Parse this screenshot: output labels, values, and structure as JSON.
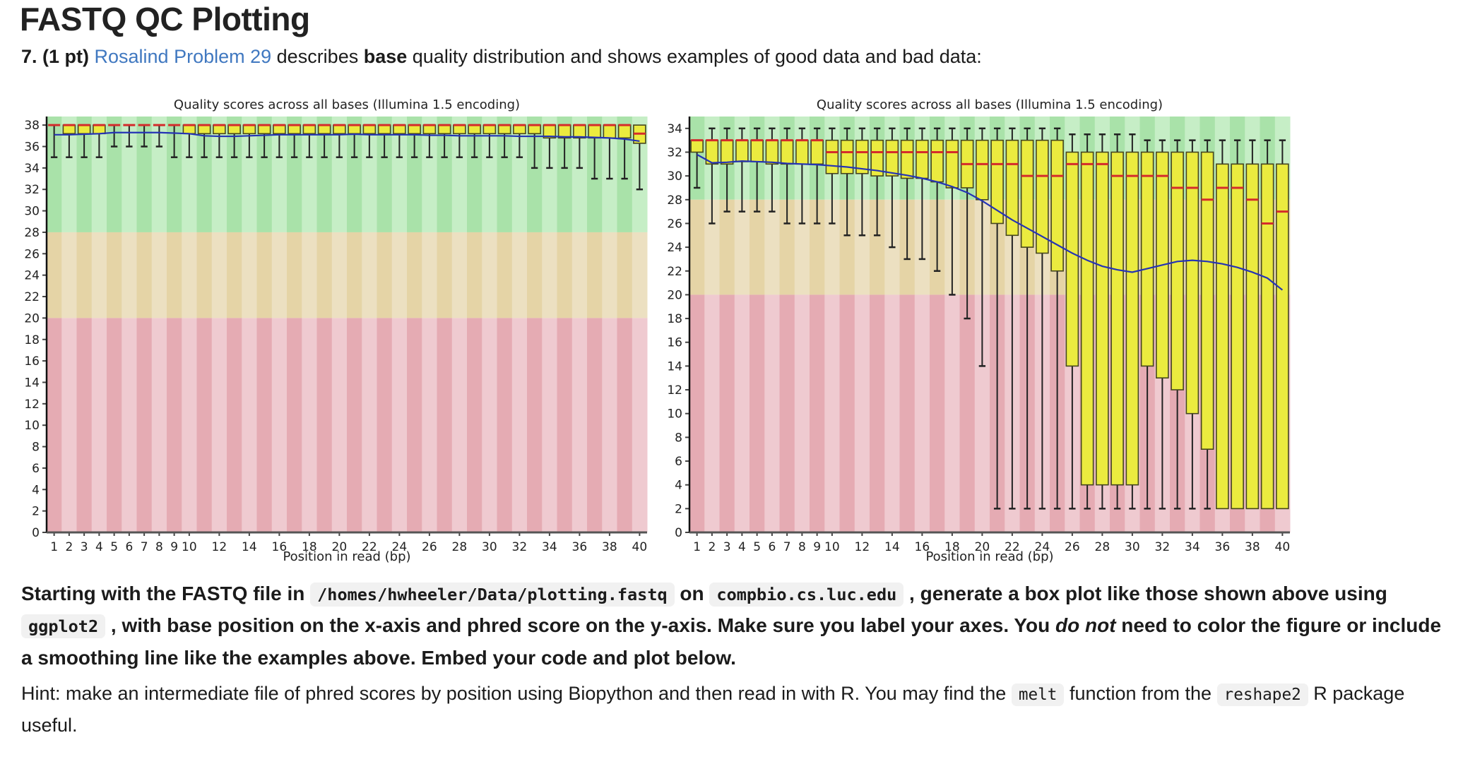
{
  "page": {
    "title": "FASTQ QC Plotting",
    "question_runs": [
      {
        "t": "7. (1 pt) ",
        "s": "b"
      },
      {
        "t": "Rosalind Problem 29",
        "s": "link"
      },
      {
        "t": " describes ",
        "s": "t"
      },
      {
        "t": "base",
        "s": "b"
      },
      {
        "t": " quality distribution and shows examples of good data and bad data:",
        "s": "t"
      }
    ],
    "instruction_runs": [
      {
        "t": "Starting with the FASTQ file in ",
        "s": "t"
      },
      {
        "t": "/homes/hwheeler/Data/plotting.fastq",
        "s": "code"
      },
      {
        "t": " on ",
        "s": "t"
      },
      {
        "t": "compbio.cs.luc.edu",
        "s": "code"
      },
      {
        "t": " , generate a box plot like those shown above using ",
        "s": "t"
      },
      {
        "t": "ggplot2",
        "s": "code"
      },
      {
        "t": " , with base position on the x-axis and phred score on the y-axis. Make sure you label your axes. You ",
        "s": "t"
      },
      {
        "t": "do not",
        "s": "bi"
      },
      {
        "t": " need to color the figure or include a smoothing line like the examples above. Embed your code and plot below.",
        "s": "t"
      }
    ],
    "hint_runs": [
      {
        "t": "Hint: make an intermediate file of phred scores by position using Biopython and then read in with R. You may find the ",
        "s": "t"
      },
      {
        "t": "melt",
        "s": "code"
      },
      {
        "t": " function from the ",
        "s": "t"
      },
      {
        "t": "reshape2",
        "s": "code"
      },
      {
        "t": " R package useful.",
        "s": "t"
      }
    ]
  },
  "chart_data": [
    {
      "type": "boxplot",
      "name": "good-data-example",
      "title": "Quality scores across all bases (Illumina 1.5 encoding)",
      "xlabel": "Position in read (bp)",
      "ylim": [
        0,
        38.8
      ],
      "yticks": [
        0,
        2,
        4,
        6,
        8,
        10,
        12,
        14,
        16,
        18,
        20,
        22,
        24,
        26,
        28,
        30,
        32,
        34,
        36,
        38
      ],
      "xticks": [
        1,
        2,
        3,
        4,
        5,
        6,
        7,
        8,
        9,
        10,
        12,
        14,
        16,
        18,
        20,
        22,
        24,
        26,
        28,
        30,
        32,
        34,
        36,
        38,
        40
      ],
      "zones": [
        {
          "from": 28,
          "to": 38.8,
          "colors": [
            "#a9e2a9",
            "#c6eec6"
          ]
        },
        {
          "from": 20,
          "to": 28,
          "colors": [
            "#e5d4a6",
            "#ece0c1"
          ]
        },
        {
          "from": 0,
          "to": 20,
          "colors": [
            "#e5abb3",
            "#efcad0"
          ]
        }
      ],
      "box_format": [
        "q1",
        "median",
        "q3",
        "whisker_low",
        "whisker_high"
      ],
      "boxes": [
        [
          38,
          38,
          38,
          35,
          38
        ],
        [
          37.2,
          38,
          38,
          35,
          38
        ],
        [
          37.2,
          38,
          38,
          35,
          38
        ],
        [
          37.2,
          38,
          38,
          35,
          38
        ],
        [
          38,
          38,
          38,
          36,
          38
        ],
        [
          38,
          38,
          38,
          36,
          38
        ],
        [
          38,
          38,
          38,
          36,
          38
        ],
        [
          38,
          38,
          38,
          36,
          38
        ],
        [
          38,
          38,
          38,
          35,
          38
        ],
        [
          37.2,
          38,
          38,
          35,
          38
        ],
        [
          37.2,
          38,
          38,
          35,
          38
        ],
        [
          37.2,
          38,
          38,
          35,
          38
        ],
        [
          37.2,
          38,
          38,
          35,
          38
        ],
        [
          37.2,
          38,
          38,
          35,
          38
        ],
        [
          37.2,
          38,
          38,
          35,
          38
        ],
        [
          37.2,
          38,
          38,
          35,
          38
        ],
        [
          37.2,
          38,
          38,
          35,
          38
        ],
        [
          37.2,
          38,
          38,
          35,
          38
        ],
        [
          37.2,
          38,
          38,
          35,
          38
        ],
        [
          37.2,
          38,
          38,
          35,
          38
        ],
        [
          37.2,
          38,
          38,
          35,
          38
        ],
        [
          37.2,
          38,
          38,
          35,
          38
        ],
        [
          37.2,
          38,
          38,
          35,
          38
        ],
        [
          37.2,
          38,
          38,
          35,
          38
        ],
        [
          37.2,
          38,
          38,
          35,
          38
        ],
        [
          37.2,
          38,
          38,
          35,
          38
        ],
        [
          37.2,
          38,
          38,
          35,
          38
        ],
        [
          37.2,
          38,
          38,
          35,
          38
        ],
        [
          37.2,
          38,
          38,
          35,
          38
        ],
        [
          37.2,
          38,
          38,
          35,
          38
        ],
        [
          37.2,
          38,
          38,
          35,
          38
        ],
        [
          37.2,
          38,
          38,
          35,
          38
        ],
        [
          37.2,
          38,
          38,
          34,
          38
        ],
        [
          36.8,
          38,
          38,
          34,
          38
        ],
        [
          36.8,
          38,
          38,
          34,
          38
        ],
        [
          36.8,
          38,
          38,
          34,
          38
        ],
        [
          36.8,
          38,
          38,
          33,
          38
        ],
        [
          36.8,
          38,
          38,
          33,
          38
        ],
        [
          36.8,
          38,
          38,
          33,
          38
        ],
        [
          36.3,
          37.2,
          38,
          32,
          38
        ]
      ],
      "mean": [
        37.1,
        37.1,
        37.15,
        37.2,
        37.3,
        37.3,
        37.3,
        37.3,
        37.25,
        37.2,
        37.0,
        36.95,
        36.95,
        37.0,
        37.05,
        37.1,
        37.1,
        37.1,
        37.1,
        37.1,
        37.15,
        37.1,
        37.1,
        37.1,
        37.1,
        37.05,
        37.05,
        37.0,
        37.0,
        37.0,
        37.0,
        36.95,
        36.95,
        36.95,
        36.9,
        36.9,
        36.85,
        36.8,
        36.7,
        36.5
      ],
      "colors": {
        "box": "#ebeb3f",
        "box_border": "#46461f",
        "median": "#d42c2c",
        "mean": "#2533b5",
        "whisker": "#222222",
        "axis": "#444444",
        "text": "#222222"
      }
    },
    {
      "type": "boxplot",
      "name": "bad-data-example",
      "title": "Quality scores across all bases (Illumina 1.5 encoding)",
      "xlabel": "Position in read (bp)",
      "ylim": [
        0,
        35
      ],
      "yticks": [
        0,
        2,
        4,
        6,
        8,
        10,
        12,
        14,
        16,
        18,
        20,
        22,
        24,
        26,
        28,
        30,
        32,
        34
      ],
      "xticks": [
        1,
        2,
        3,
        4,
        5,
        6,
        7,
        8,
        9,
        10,
        12,
        14,
        16,
        18,
        20,
        22,
        24,
        26,
        28,
        30,
        32,
        34,
        36,
        38,
        40
      ],
      "zones": [
        {
          "from": 28,
          "to": 35,
          "colors": [
            "#a9e2a9",
            "#c6eec6"
          ]
        },
        {
          "from": 20,
          "to": 28,
          "colors": [
            "#e5d4a6",
            "#ece0c1"
          ]
        },
        {
          "from": 0,
          "to": 20,
          "colors": [
            "#e5abb3",
            "#efcad0"
          ]
        }
      ],
      "box_format": [
        "q1",
        "median",
        "q3",
        "whisker_low",
        "whisker_high"
      ],
      "boxes": [
        [
          32,
          33,
          33,
          29,
          33
        ],
        [
          31,
          33,
          33,
          26,
          34
        ],
        [
          31,
          33,
          33,
          27,
          34
        ],
        [
          31.2,
          33,
          33,
          27,
          34
        ],
        [
          31.2,
          33,
          33,
          27,
          34
        ],
        [
          31,
          33,
          33,
          27,
          34
        ],
        [
          31,
          33,
          33,
          26,
          34
        ],
        [
          31,
          33,
          33,
          26,
          34
        ],
        [
          31,
          33,
          33,
          26,
          34
        ],
        [
          30.2,
          32,
          33,
          26,
          34
        ],
        [
          30.2,
          32,
          33,
          25,
          34
        ],
        [
          30.2,
          32,
          33,
          25,
          34
        ],
        [
          30,
          32,
          33,
          25,
          34
        ],
        [
          30,
          32,
          33,
          24,
          34
        ],
        [
          29.8,
          32,
          33,
          23,
          34
        ],
        [
          29.8,
          32,
          33,
          23,
          34
        ],
        [
          29.5,
          32,
          33,
          22,
          34
        ],
        [
          29,
          32,
          33,
          20,
          34
        ],
        [
          29,
          31,
          33,
          18,
          34
        ],
        [
          28,
          31,
          33,
          14,
          34
        ],
        [
          26,
          31,
          33,
          2,
          34
        ],
        [
          25,
          31,
          33,
          2,
          34
        ],
        [
          24,
          30,
          33,
          2,
          34
        ],
        [
          23.5,
          30,
          33,
          2,
          34
        ],
        [
          22,
          30,
          33,
          2,
          34
        ],
        [
          14,
          31,
          32,
          2,
          33.5
        ],
        [
          4,
          31,
          32,
          2,
          33.5
        ],
        [
          4,
          31,
          32,
          2,
          33.5
        ],
        [
          4,
          30,
          32,
          2,
          33.5
        ],
        [
          4,
          30,
          32,
          2,
          33.5
        ],
        [
          14,
          30,
          32,
          2,
          33
        ],
        [
          13,
          30,
          32,
          2,
          33
        ],
        [
          12,
          29,
          32,
          2,
          33
        ],
        [
          10,
          29,
          32,
          2,
          33
        ],
        [
          7,
          28,
          32,
          2,
          33
        ],
        [
          2,
          29,
          31,
          2,
          33
        ],
        [
          2,
          29,
          31,
          2,
          33
        ],
        [
          2,
          28,
          31,
          2,
          33
        ],
        [
          2,
          26,
          31,
          2,
          33
        ],
        [
          2,
          27,
          31,
          2,
          33
        ]
      ],
      "mean": [
        31.8,
        31.1,
        31.15,
        31.25,
        31.2,
        31.15,
        31.05,
        31.0,
        30.95,
        30.85,
        30.75,
        30.6,
        30.45,
        30.25,
        30.05,
        29.8,
        29.5,
        29.1,
        28.6,
        27.9,
        27.1,
        26.3,
        25.6,
        24.9,
        24.2,
        23.5,
        22.9,
        22.4,
        22.1,
        21.9,
        22.2,
        22.5,
        22.8,
        22.9,
        22.8,
        22.6,
        22.3,
        21.9,
        21.4,
        20.4
      ],
      "colors": {
        "box": "#ebeb3f",
        "box_border": "#46461f",
        "median": "#d42c2c",
        "mean": "#2533b5",
        "whisker": "#222222",
        "axis": "#444444",
        "text": "#222222"
      }
    }
  ]
}
